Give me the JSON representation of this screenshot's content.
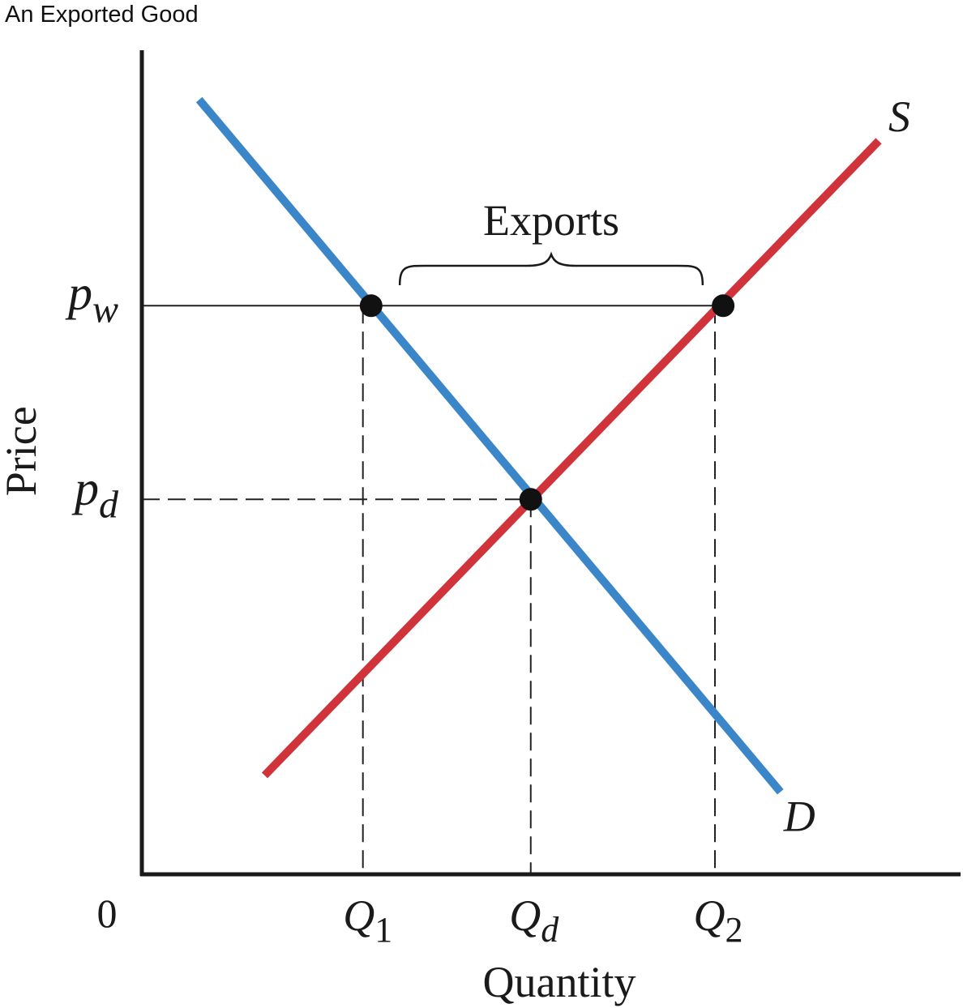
{
  "title": "An Exported Good",
  "chart_data": {
    "type": "line",
    "title": "An Exported Good",
    "xlabel": "Quantity",
    "ylabel": "Price",
    "origin_label": "0",
    "xlim": [
      0,
      100
    ],
    "ylim": [
      0,
      100
    ],
    "grid": false,
    "series": [
      {
        "name": "S",
        "color": "#d0343a",
        "points": [
          [
            15,
            12
          ],
          [
            90,
            89
          ]
        ]
      },
      {
        "name": "D",
        "color": "#3a86c8",
        "points": [
          [
            7,
            94
          ],
          [
            78,
            10
          ]
        ]
      }
    ],
    "markers": [
      {
        "name": "Q1-pw",
        "x": 28,
        "y": 69
      },
      {
        "name": "Q2-pw",
        "x": 71,
        "y": 69
      },
      {
        "name": "equilibrium",
        "x": 47.5,
        "y": 45.5
      }
    ],
    "reference_lines": {
      "pw_price": 69,
      "pd_price": 45.5,
      "q1": 27,
      "qd": 47.5,
      "q2": 70
    },
    "price_labels": {
      "world": {
        "base": "p",
        "sub": "w"
      },
      "domestic": {
        "base": "p",
        "sub": "d"
      }
    },
    "quantity_labels": [
      {
        "base": "Q",
        "sub": "1"
      },
      {
        "base": "Q",
        "sub": "d"
      },
      {
        "base": "Q",
        "sub": "2"
      }
    ],
    "annotations": {
      "exports_label": "Exports",
      "exports_from": 31.5,
      "exports_to": 68.5
    }
  }
}
